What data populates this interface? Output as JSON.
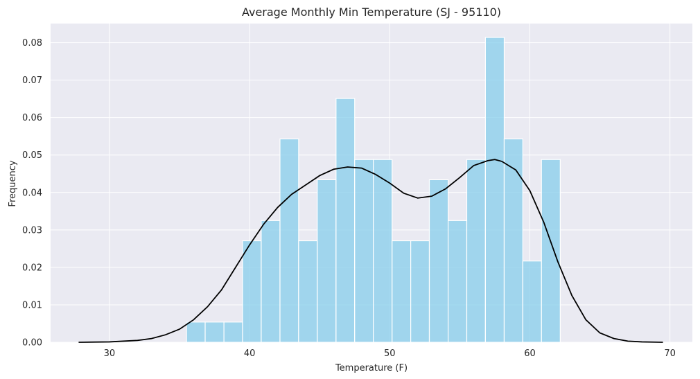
{
  "chart_data": {
    "type": "bar",
    "title": "Average Monthly Min Temperature (SJ - 95110)",
    "xlabel": "Temperature (F)",
    "ylabel": "Frequency",
    "xlim": [
      25.8,
      71.6
    ],
    "ylim": [
      0,
      0.0851
    ],
    "xticks": [
      30,
      40,
      50,
      60,
      70
    ],
    "yticks": [
      0.0,
      0.01,
      0.02,
      0.03,
      0.04,
      0.05,
      0.06,
      0.07,
      0.08
    ],
    "ytick_labels": [
      "0.00",
      "0.01",
      "0.02",
      "0.03",
      "0.04",
      "0.05",
      "0.06",
      "0.07",
      "0.08"
    ],
    "grid": true,
    "bins": {
      "edges": [
        35.5,
        36.83,
        38.17,
        39.5,
        40.83,
        42.17,
        43.5,
        44.83,
        46.17,
        47.5,
        48.83,
        50.17,
        51.5,
        52.83,
        54.17,
        55.5,
        56.83,
        58.17,
        59.5,
        60.83,
        62.17
      ],
      "values": [
        0.0054,
        0.0054,
        0.0054,
        0.0271,
        0.0325,
        0.0543,
        0.0271,
        0.0434,
        0.0651,
        0.0488,
        0.0488,
        0.0271,
        0.0271,
        0.0434,
        0.0325,
        0.0488,
        0.0814,
        0.0543,
        0.0217,
        0.0488
      ]
    },
    "kde": {
      "x": [
        27.8,
        30,
        32,
        33,
        34,
        35,
        36,
        37,
        38,
        39,
        40,
        41,
        42,
        43,
        44,
        45,
        46,
        47,
        48,
        49,
        50,
        51,
        52,
        53,
        54,
        55,
        56,
        57,
        57.5,
        58,
        59,
        60,
        61,
        62,
        63,
        64,
        65,
        66,
        67,
        68,
        69.5
      ],
      "y": [
        0.0,
        0.0001,
        0.0005,
        0.001,
        0.002,
        0.0035,
        0.006,
        0.0095,
        0.014,
        0.02,
        0.026,
        0.0315,
        0.036,
        0.0395,
        0.042,
        0.0445,
        0.0462,
        0.0468,
        0.0465,
        0.0448,
        0.0425,
        0.0398,
        0.0385,
        0.039,
        0.041,
        0.044,
        0.0472,
        0.0485,
        0.0488,
        0.0483,
        0.046,
        0.0405,
        0.032,
        0.0215,
        0.0125,
        0.006,
        0.0025,
        0.001,
        0.0003,
        0.0001,
        0.0
      ]
    },
    "colors": {
      "bar_fill": "#87ceeb",
      "bar_edge": "#ffffff",
      "kde_line": "#000000",
      "plot_bg": "#eaeaf2",
      "grid": "#ffffff"
    }
  }
}
